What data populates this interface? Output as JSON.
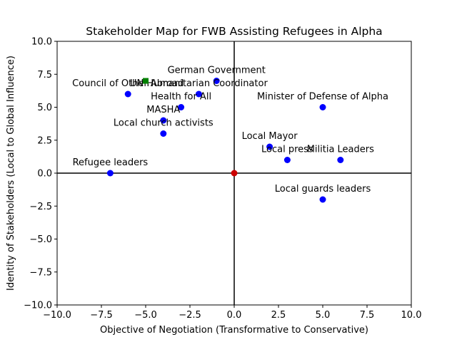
{
  "chart_data": {
    "type": "scatter",
    "title": "Stakeholder Map for FWB Assisting Refugees in Alpha",
    "xlabel": "Objective of Negotiation (Transformative to Conservative)",
    "ylabel": "Identity of Stakeholders (Local to Global Influence)",
    "xlim": [
      -10,
      10
    ],
    "ylim": [
      -10,
      10
    ],
    "xticks": [
      -10,
      -7.5,
      -5,
      -2.5,
      0,
      2.5,
      5,
      7.5,
      10
    ],
    "yticks": [
      -10,
      -7.5,
      -5,
      -2.5,
      0,
      2.5,
      5,
      7.5,
      10
    ],
    "xtick_labels": [
      "−10.0",
      "−7.5",
      "−5.0",
      "−2.5",
      "0.0",
      "2.5",
      "5.0",
      "7.5",
      "10.0"
    ],
    "ytick_labels": [
      "−10.0",
      "−7.5",
      "−5.0",
      "−2.5",
      "0.0",
      "2.5",
      "5.0",
      "7.5",
      "10.0"
    ],
    "grid": false,
    "colors": {
      "stakeholder": "#0000ff",
      "origin": "#cc0000",
      "highlight": "#008000"
    },
    "points": [
      {
        "label": "German Government",
        "x": -1,
        "y": 7,
        "color": "#0000ff"
      },
      {
        "label": "UN Humanitarian Coordinator",
        "x": -2,
        "y": 6,
        "color": "#0000ff"
      },
      {
        "label": "Council of Other Abroad",
        "x": -6,
        "y": 6,
        "color": "#0000ff"
      },
      {
        "label": "",
        "x": -5,
        "y": 7,
        "color": "#008000"
      },
      {
        "label": "Health for All",
        "x": -3,
        "y": 5,
        "color": "#0000ff"
      },
      {
        "label": "MASHA",
        "x": -4,
        "y": 4,
        "color": "#0000ff"
      },
      {
        "label": "Local church activists",
        "x": -4,
        "y": 3,
        "color": "#0000ff"
      },
      {
        "label": "Refugee leaders",
        "x": -7,
        "y": 0,
        "color": "#0000ff"
      },
      {
        "label": "Minister of Defense of Alpha",
        "x": 5,
        "y": 5,
        "color": "#0000ff"
      },
      {
        "label": "Local Mayor",
        "x": 2,
        "y": 2,
        "color": "#0000ff"
      },
      {
        "label": "Local press",
        "x": 3,
        "y": 1,
        "color": "#0000ff"
      },
      {
        "label": "Militia Leaders",
        "x": 6,
        "y": 1,
        "color": "#0000ff"
      },
      {
        "label": "Local guards leaders",
        "x": 5,
        "y": -2,
        "color": "#0000ff"
      },
      {
        "label": "",
        "x": 0,
        "y": 0,
        "color": "#cc0000"
      }
    ]
  }
}
